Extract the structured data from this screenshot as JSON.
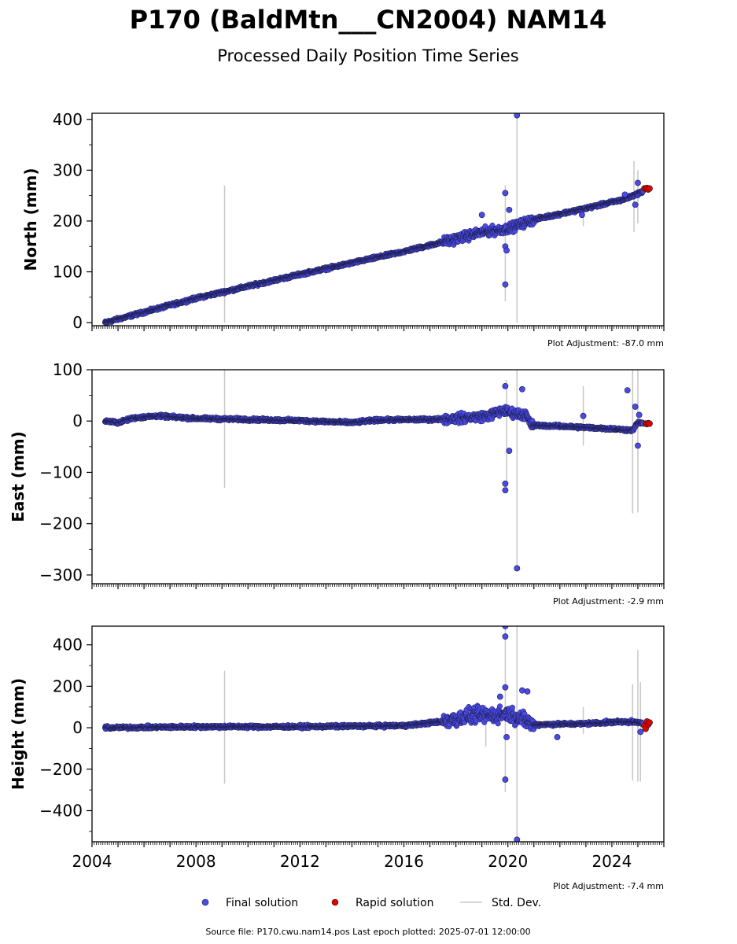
{
  "title": "P170 (BaldMtn___CN2004) NAM14",
  "subtitle": "Processed Daily Position Time Series",
  "legend": {
    "final": "Final solution",
    "rapid": "Rapid solution",
    "std": "Std. Dev."
  },
  "footer": "Source file: P170.cwu.nam14.pos  Last epoch plotted: 2025-07-01 12:00:00",
  "colors": {
    "final": "#4a4ae8",
    "rapid": "#e00000",
    "std": "#c8c8c8"
  },
  "chart_data": [
    {
      "type": "scatter",
      "ylabel": "North (mm)",
      "adjustment": "Plot Adjustment: -87.0 mm",
      "xlim": [
        2004.0,
        2026.0
      ],
      "ylim": [
        -6,
        412
      ],
      "yticks": [
        0,
        100,
        200,
        300,
        400
      ],
      "xticks": [
        2004,
        2008,
        2012,
        2016,
        2020,
        2024
      ],
      "trend": [
        [
          2004.5,
          0
        ],
        [
          2008,
          48
        ],
        [
          2012,
          95
        ],
        [
          2016,
          140
        ],
        [
          2018,
          165
        ],
        [
          2019,
          178
        ],
        [
          2020,
          185
        ],
        [
          2021,
          203
        ],
        [
          2023,
          225
        ],
        [
          2024.5,
          243
        ],
        [
          2025.5,
          265
        ]
      ],
      "outliers": [
        [
          2019.0,
          212
        ],
        [
          2019.9,
          255
        ],
        [
          2019.9,
          75
        ],
        [
          2019.9,
          150
        ],
        [
          2019.95,
          142
        ],
        [
          2020.05,
          222
        ],
        [
          2020.35,
          408
        ],
        [
          2022.85,
          212
        ],
        [
          2024.5,
          252
        ],
        [
          2024.9,
          232
        ],
        [
          2025.0,
          275
        ]
      ],
      "errorbars": [
        [
          2009.1,
          0,
          270
        ],
        [
          2019.9,
          42,
          270
        ],
        [
          2020.35,
          0,
          410
        ],
        [
          2024.85,
          178,
          318
        ],
        [
          2025.0,
          195,
          300
        ],
        [
          2022.9,
          190,
          232
        ]
      ],
      "rapid": [
        [
          2025.25,
          264
        ],
        [
          2025.3,
          263
        ],
        [
          2025.35,
          265
        ],
        [
          2025.4,
          262
        ],
        [
          2025.45,
          264
        ]
      ]
    },
    {
      "type": "scatter",
      "ylabel": "East (mm)",
      "adjustment": "Plot Adjustment: -2.9 mm",
      "xlim": [
        2004.0,
        2026.0
      ],
      "ylim": [
        -317,
        100
      ],
      "yticks": [
        -300,
        -200,
        -100,
        0,
        100
      ],
      "xticks": [
        2004,
        2008,
        2012,
        2016,
        2020,
        2024
      ],
      "trend": [
        [
          2004.5,
          0
        ],
        [
          2005,
          -3
        ],
        [
          2005.6,
          6
        ],
        [
          2006.5,
          10
        ],
        [
          2008,
          5
        ],
        [
          2010,
          3
        ],
        [
          2012,
          1
        ],
        [
          2014,
          -3
        ],
        [
          2015,
          2
        ],
        [
          2017,
          3
        ],
        [
          2018,
          5
        ],
        [
          2019.2,
          10
        ],
        [
          2019.8,
          20
        ],
        [
          2020.3,
          15
        ],
        [
          2020.7,
          12
        ],
        [
          2020.9,
          -8
        ],
        [
          2022,
          -10
        ],
        [
          2024,
          -15
        ],
        [
          2024.8,
          -18
        ],
        [
          2025.0,
          -3
        ],
        [
          2025.5,
          -5
        ]
      ],
      "outliers": [
        [
          2019.9,
          68
        ],
        [
          2019.9,
          -122
        ],
        [
          2019.9,
          -135
        ],
        [
          2020.05,
          -58
        ],
        [
          2020.35,
          -287
        ],
        [
          2020.55,
          62
        ],
        [
          2022.9,
          10
        ],
        [
          2024.6,
          60
        ],
        [
          2024.9,
          28
        ],
        [
          2025.0,
          -48
        ],
        [
          2025.05,
          12
        ]
      ],
      "errorbars": [
        [
          2009.1,
          -130,
          100
        ],
        [
          2020.35,
          -290,
          100
        ],
        [
          2022.9,
          -48,
          68
        ],
        [
          2024.8,
          -180,
          100
        ],
        [
          2025.0,
          -178,
          100
        ],
        [
          2019.95,
          -135,
          80
        ]
      ],
      "rapid": [
        [
          2025.3,
          -5
        ],
        [
          2025.35,
          -6
        ],
        [
          2025.4,
          -4
        ],
        [
          2025.45,
          -5
        ]
      ]
    },
    {
      "type": "scatter",
      "ylabel": "Height (mm)",
      "adjustment": "Plot Adjustment: -7.4 mm",
      "xlim": [
        2004.0,
        2026.0
      ],
      "ylim": [
        -550,
        490
      ],
      "yticks": [
        -400,
        -200,
        0,
        200,
        400
      ],
      "xticks": [
        2004,
        2008,
        2012,
        2016,
        2020,
        2024
      ],
      "trend": [
        [
          2004.5,
          0
        ],
        [
          2008,
          5
        ],
        [
          2012,
          5
        ],
        [
          2016,
          10
        ],
        [
          2017.5,
          30
        ],
        [
          2018.7,
          60
        ],
        [
          2019.5,
          60
        ],
        [
          2020.0,
          70
        ],
        [
          2020.6,
          40
        ],
        [
          2021,
          15
        ],
        [
          2023,
          20
        ],
        [
          2024.5,
          30
        ],
        [
          2025.5,
          20
        ]
      ],
      "outliers": [
        [
          2019.9,
          490
        ],
        [
          2019.9,
          440
        ],
        [
          2019.9,
          195
        ],
        [
          2019.9,
          -250
        ],
        [
          2019.95,
          -45
        ],
        [
          2019.7,
          150
        ],
        [
          2020.55,
          180
        ],
        [
          2020.75,
          175
        ],
        [
          2020.35,
          -540
        ],
        [
          2021.9,
          -45
        ],
        [
          2025.1,
          -20
        ]
      ],
      "errorbars": [
        [
          2009.1,
          -270,
          275
        ],
        [
          2019.9,
          -310,
          490
        ],
        [
          2020.35,
          -550,
          490
        ],
        [
          2019.15,
          -90,
          110
        ],
        [
          2024.8,
          -255,
          210
        ],
        [
          2025.0,
          -260,
          375
        ],
        [
          2025.1,
          -260,
          220
        ],
        [
          2022.9,
          -30,
          100
        ]
      ],
      "rapid": [
        [
          2025.25,
          10
        ],
        [
          2025.3,
          -5
        ],
        [
          2025.35,
          30
        ],
        [
          2025.4,
          15
        ],
        [
          2025.45,
          25
        ]
      ]
    }
  ]
}
